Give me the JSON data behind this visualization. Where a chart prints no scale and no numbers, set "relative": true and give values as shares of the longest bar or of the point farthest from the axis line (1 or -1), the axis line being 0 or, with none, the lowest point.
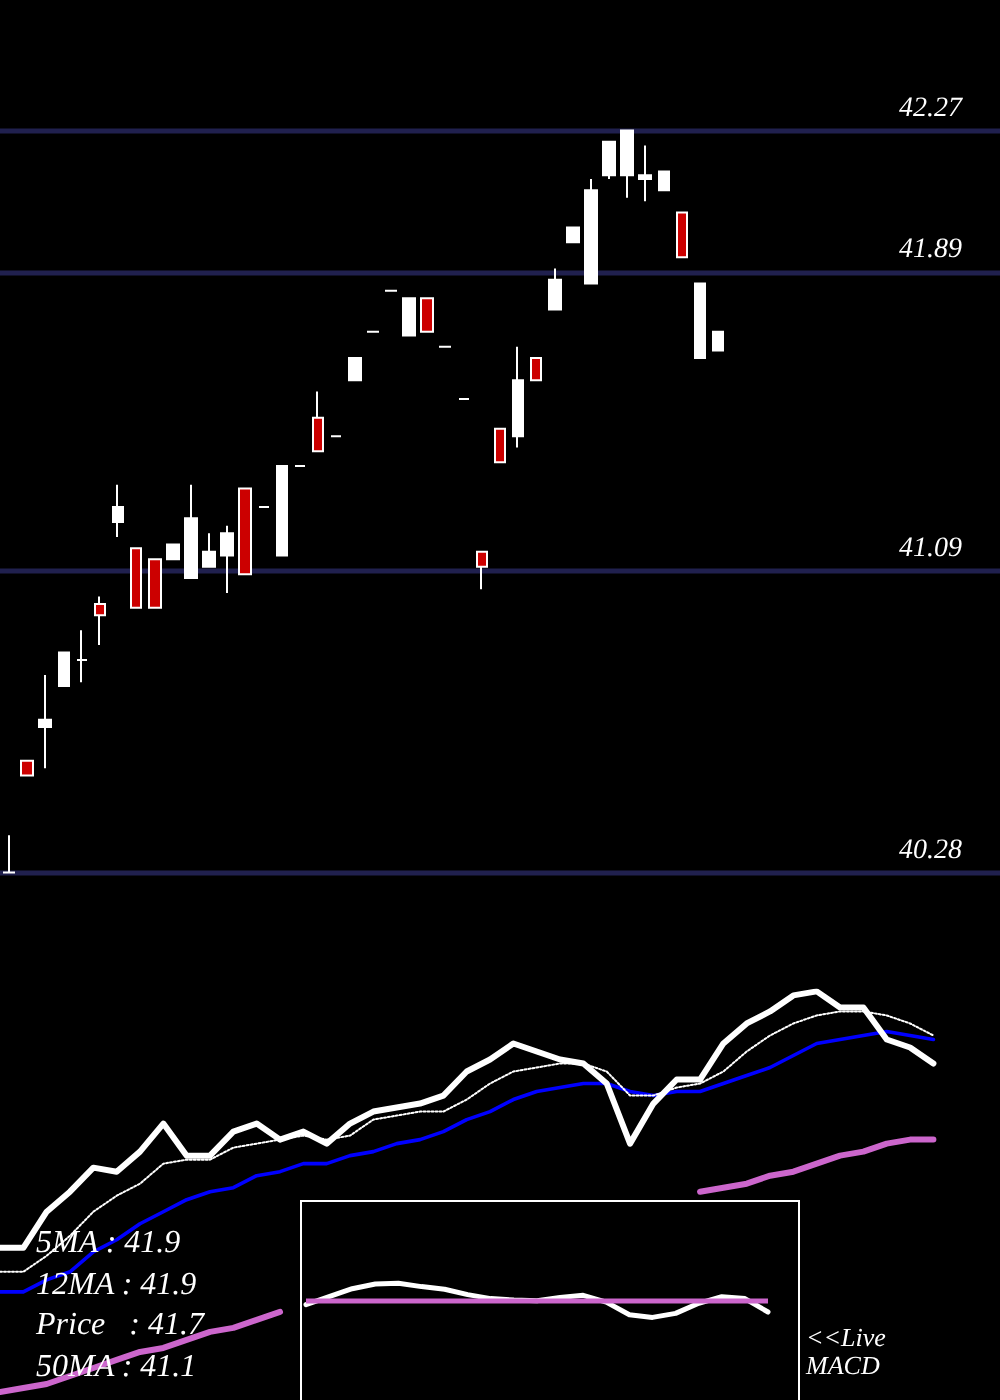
{
  "chart_data": [
    {
      "type": "candlestick",
      "categories": [
        null,
        null,
        null,
        null,
        null,
        null,
        null,
        null,
        null,
        null,
        null,
        null,
        null,
        null,
        null,
        null,
        null,
        null,
        null,
        null,
        null,
        null,
        null,
        null,
        null,
        null,
        null,
        null,
        null,
        null,
        null,
        null,
        null,
        null,
        null,
        null,
        null,
        null,
        null,
        null,
        null,
        null,
        null,
        null,
        null,
        null,
        null,
        null,
        null,
        null,
        null,
        null,
        null,
        null,
        null
      ],
      "ohlc": [
        [
          40.28,
          40.38,
          40.28,
          40.28
        ],
        [
          40.58,
          40.58,
          40.54,
          40.54
        ],
        [
          40.67,
          40.81,
          40.56,
          40.69
        ],
        [
          40.78,
          40.87,
          40.78,
          40.87
        ],
        [
          40.85,
          40.93,
          40.79,
          40.85
        ],
        [
          41.0,
          41.02,
          40.89,
          40.97
        ],
        [
          41.22,
          41.32,
          41.18,
          41.26
        ],
        [
          41.15,
          41.15,
          40.99,
          40.99
        ],
        [
          41.12,
          41.12,
          40.99,
          40.99
        ],
        [
          41.12,
          41.16,
          41.12,
          41.16
        ],
        [
          41.07,
          41.32,
          41.07,
          41.23
        ],
        [
          41.1,
          41.19,
          41.1,
          41.14
        ],
        [
          41.13,
          41.21,
          41.03,
          41.19
        ],
        [
          41.31,
          41.31,
          41.08,
          41.08
        ],
        [
          41.26,
          41.26,
          41.26,
          41.26
        ],
        [
          41.13,
          41.37,
          41.13,
          41.37
        ],
        [
          41.37,
          41.37,
          41.37,
          41.37
        ],
        [
          41.5,
          41.57,
          41.41,
          41.41
        ],
        [
          41.45,
          41.45,
          41.45,
          41.45
        ],
        [
          41.6,
          41.66,
          41.6,
          41.66
        ],
        [
          41.73,
          41.73,
          41.73,
          41.73
        ],
        [
          41.84,
          41.84,
          41.84,
          41.84
        ],
        [
          41.72,
          41.82,
          41.72,
          41.82
        ],
        [
          41.82,
          41.82,
          41.73,
          41.73
        ],
        [
          41.69,
          41.69,
          41.69,
          41.69
        ],
        [
          41.55,
          41.55,
          41.55,
          41.55
        ],
        [
          41.14,
          41.14,
          41.04,
          41.1
        ],
        [
          41.47,
          41.47,
          41.38,
          41.38
        ],
        [
          41.45,
          41.69,
          41.42,
          41.6
        ],
        [
          41.66,
          41.66,
          41.6,
          41.6
        ],
        [
          41.79,
          41.9,
          41.79,
          41.87
        ],
        [
          41.97,
          42.01,
          41.97,
          42.01
        ],
        [
          41.86,
          42.14,
          41.86,
          42.11
        ],
        [
          42.15,
          42.24,
          42.14,
          42.24
        ],
        [
          42.15,
          42.27,
          42.09,
          42.27
        ],
        [
          42.14,
          42.23,
          42.08,
          42.15
        ],
        [
          42.11,
          42.16,
          42.11,
          42.16
        ],
        [
          42.05,
          42.05,
          41.93,
          41.93
        ],
        [
          41.66,
          41.86,
          41.66,
          41.86
        ],
        [
          41.68,
          41.73,
          41.68,
          41.73
        ],
        null,
        null,
        null,
        null,
        null,
        null,
        null,
        null,
        null,
        null,
        null,
        null,
        null,
        null,
        null
      ],
      "colors": [
        "#ffffff",
        "#cc0000",
        "#ffffff",
        "#ffffff",
        "#ffffff",
        "#cc0000",
        "#ffffff",
        "#cc0000",
        "#cc0000",
        "#ffffff",
        "#ffffff",
        "#ffffff",
        "#ffffff",
        "#cc0000",
        "#ffffff",
        "#ffffff",
        "#ffffff",
        "#cc0000",
        "#ffffff",
        "#ffffff",
        "#ffffff",
        "#ffffff",
        "#ffffff",
        "#cc0000",
        "#ffffff",
        "#ffffff",
        "#cc0000",
        "#cc0000",
        "#ffffff",
        "#cc0000",
        "#ffffff",
        "#ffffff",
        "#ffffff",
        "#ffffff",
        "#ffffff",
        "#ffffff",
        "#ffffff",
        "#cc0000",
        "#ffffff",
        "#ffffff",
        null,
        null,
        null,
        null,
        null,
        null,
        null,
        null,
        null,
        null,
        null,
        null,
        null,
        null,
        null
      ],
      "ylim": [
        40.26,
        42.62
      ],
      "yticks": [
        40.28,
        41.09,
        41.89,
        42.27
      ],
      "grid": "y",
      "tick_labels": "y"
    },
    {
      "type": "line",
      "relative": true,
      "tick_labels": false,
      "categories": [
        null,
        null,
        null,
        null,
        null,
        null,
        null,
        null,
        null,
        null,
        null,
        null,
        null,
        null,
        null,
        null,
        null,
        null,
        null,
        null,
        null,
        null,
        null,
        null,
        null,
        null,
        null,
        null,
        null,
        null,
        null,
        null,
        null,
        null,
        null,
        null,
        null,
        null,
        null,
        null,
        null
      ],
      "series": [
        {
          "color": "#cc66cc",
          "line_style": "solid",
          "values": [
            0,
            0.01,
            0.02,
            0.04,
            0.06,
            0.08,
            0.1,
            0.11,
            0.13,
            0.15,
            0.16,
            0.18,
            0.2,
            null,
            null,
            null,
            null,
            null,
            null,
            null,
            null,
            null,
            null,
            null,
            null,
            null,
            null,
            null,
            null,
            null,
            0.5,
            0.51,
            0.52,
            0.54,
            0.55,
            0.57,
            0.59,
            0.6,
            0.62,
            0.63,
            0.63
          ]
        },
        {
          "color": "#0000ff",
          "line_style": "solid",
          "values": [
            0.25,
            0.25,
            0.28,
            0.3,
            0.35,
            0.38,
            0.42,
            0.45,
            0.48,
            0.5,
            0.51,
            0.54,
            0.55,
            0.57,
            0.57,
            0.59,
            0.6,
            0.62,
            0.63,
            0.65,
            0.68,
            0.7,
            0.73,
            0.75,
            0.76,
            0.77,
            0.77,
            0.75,
            0.74,
            0.75,
            0.75,
            0.77,
            0.79,
            0.81,
            0.84,
            0.87,
            0.88,
            0.89,
            0.9,
            0.89,
            0.88
          ]
        },
        {
          "color": "#ffffff",
          "line_style": "dotted",
          "values": [
            0.3,
            0.3,
            0.34,
            0.39,
            0.45,
            0.49,
            0.52,
            0.57,
            0.58,
            0.58,
            0.61,
            0.62,
            0.63,
            0.64,
            0.63,
            0.64,
            0.68,
            0.69,
            0.7,
            0.7,
            0.73,
            0.77,
            0.8,
            0.81,
            0.82,
            0.82,
            0.8,
            0.74,
            0.74,
            0.76,
            0.77,
            0.8,
            0.85,
            0.89,
            0.92,
            0.94,
            0.95,
            0.95,
            0.94,
            0.92,
            0.89
          ]
        },
        {
          "color": "#ffffff",
          "line_style": "solid",
          "values": [
            0.36,
            0.36,
            0.45,
            0.5,
            0.56,
            0.55,
            0.6,
            0.67,
            0.59,
            0.59,
            0.65,
            0.67,
            0.63,
            0.65,
            0.62,
            0.67,
            0.7,
            0.71,
            0.72,
            0.74,
            0.8,
            0.83,
            0.87,
            0.85,
            0.83,
            0.82,
            0.77,
            0.62,
            0.72,
            0.78,
            0.78,
            0.87,
            0.92,
            0.95,
            0.99,
            1,
            0.96,
            0.96,
            0.88,
            0.86,
            0.82
          ]
        }
      ],
      "annotations": [
        "5MA : 41.9",
        "12MA : 41.9",
        "Price   : 41.7",
        "50MA : 41.1"
      ]
    },
    {
      "type": "line",
      "relative": true,
      "tick_labels": false,
      "categories": [
        null,
        null,
        null,
        null,
        null,
        null,
        null,
        null,
        null,
        null,
        null,
        null,
        null,
        null,
        null,
        null,
        null,
        null,
        null,
        null,
        null
      ],
      "series": [
        {
          "color": "#ffffff",
          "line_style": "solid",
          "values": [
            -0.27,
            0.19,
            0.65,
            0.92,
            0.96,
            0.77,
            0.62,
            0.31,
            0.08,
            0,
            -0.04,
            0.15,
            0.27,
            -0.12,
            -0.85,
            -1,
            -0.77,
            -0.19,
            0.19,
            0.08,
            -0.69
          ]
        }
      ],
      "ref_lines": [
        {
          "axis": "y",
          "value": 0,
          "color": "#cc66cc"
        }
      ],
      "annotations": [
        "<<Live MACD"
      ]
    }
  ]
}
